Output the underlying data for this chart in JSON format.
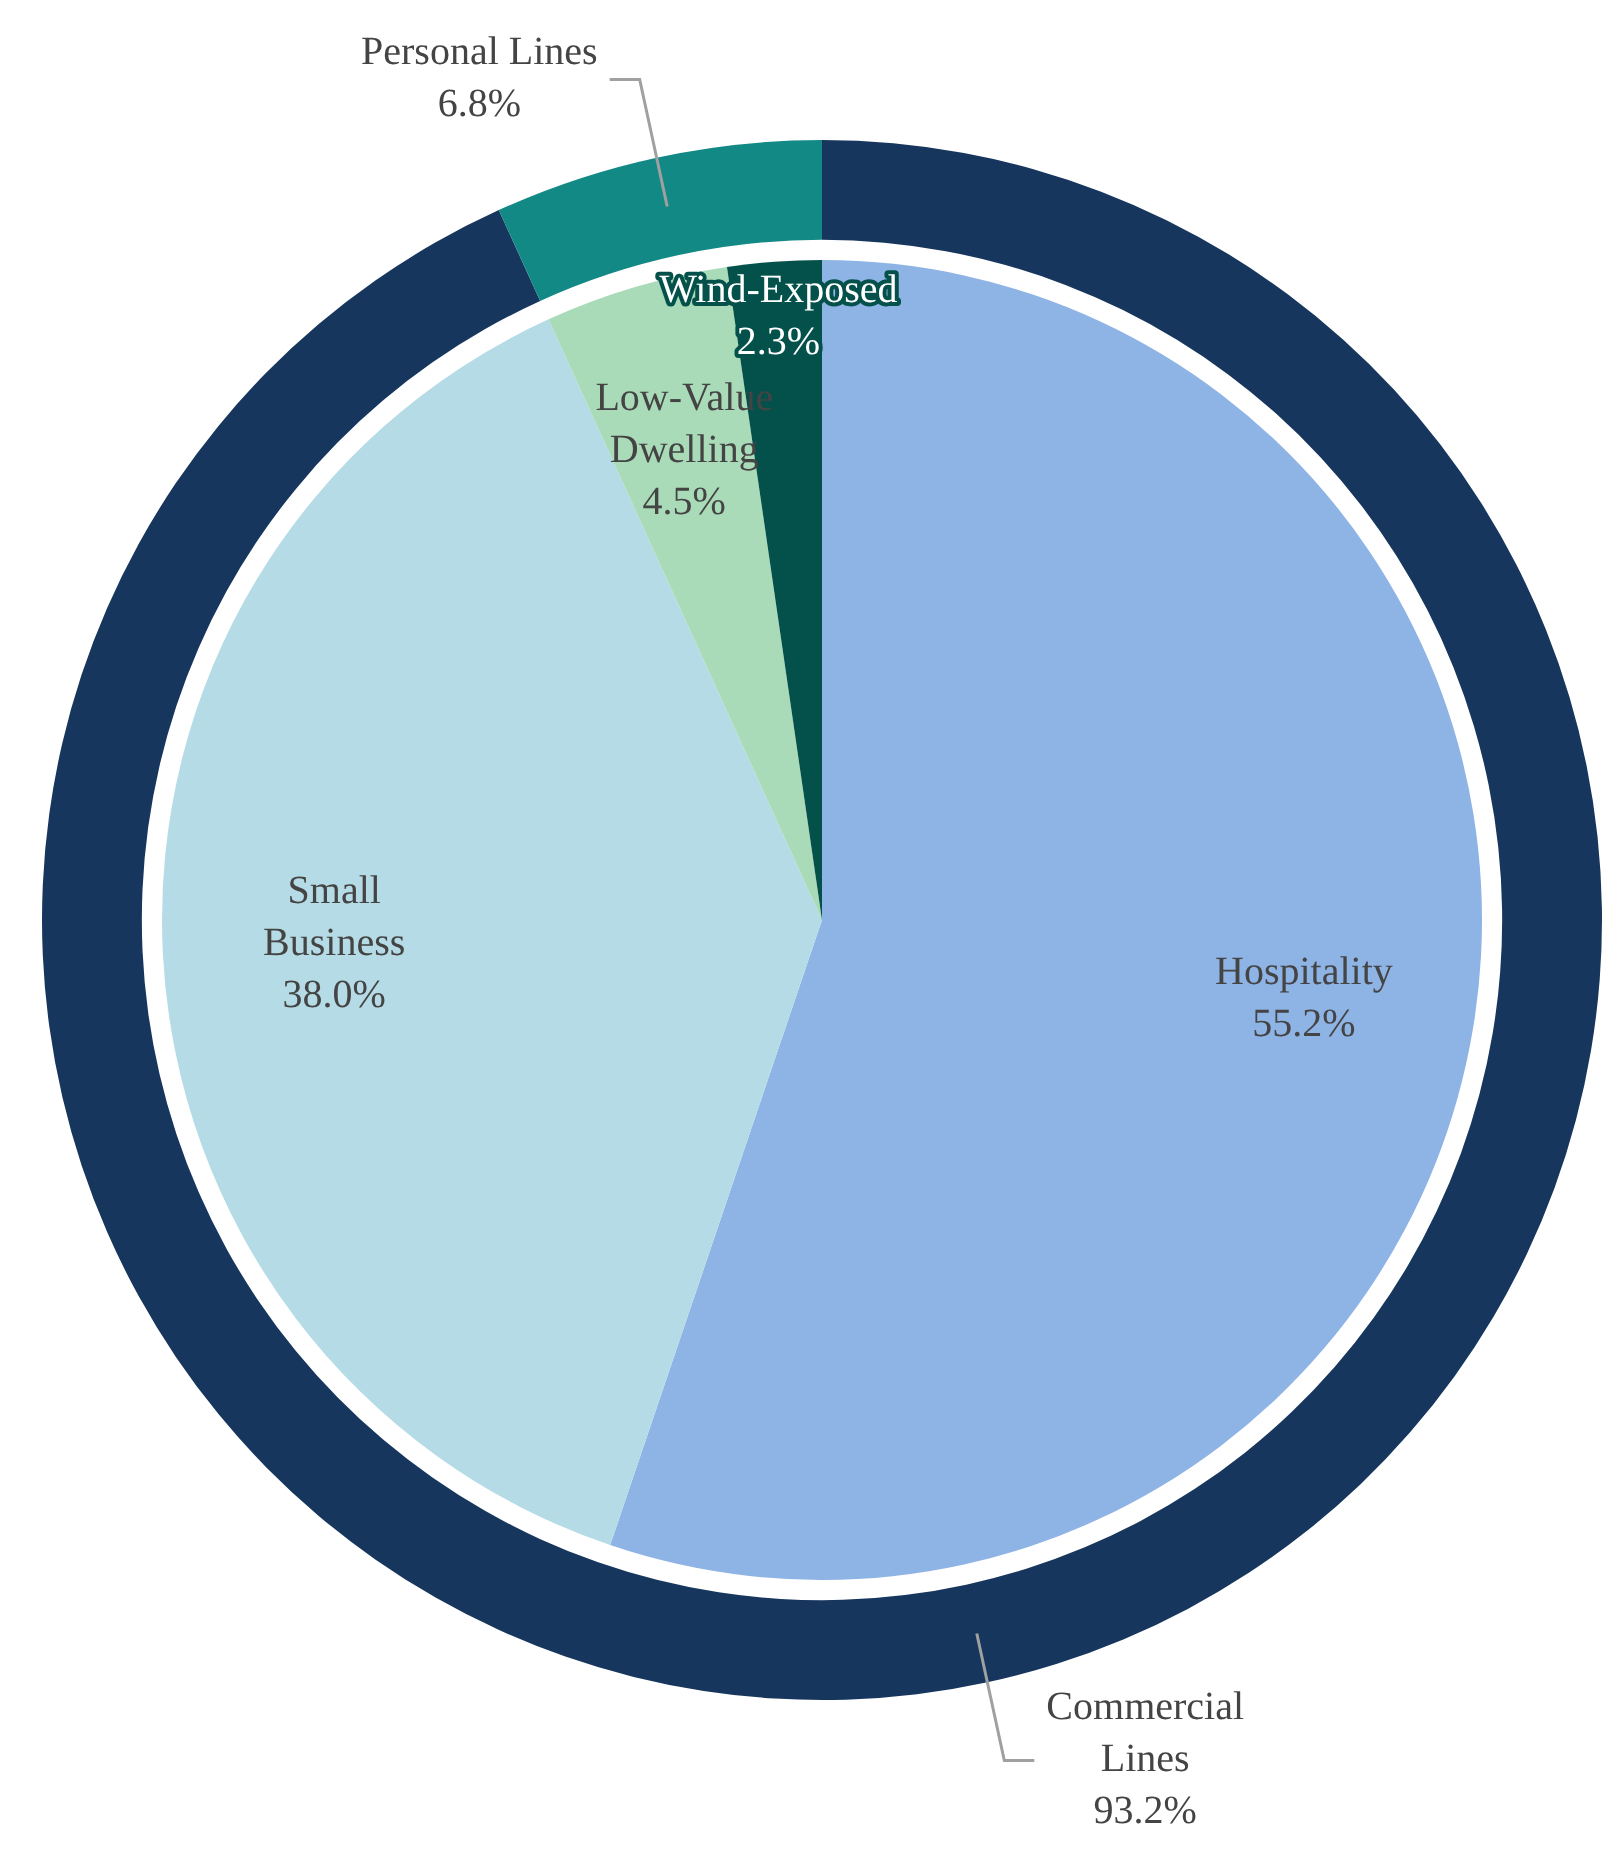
{
  "chart_data": [
    {
      "type": "donut",
      "categories": [
        "Commercial Lines",
        "Personal Lines"
      ],
      "values": [
        93.2,
        6.8
      ],
      "colors": [
        "#17365d",
        "#128985"
      ],
      "value_labels": [
        "93.2%",
        "6.8%"
      ]
    },
    {
      "type": "pie",
      "categories": [
        "Hospitality",
        "Small Business",
        "Low-Value Dwelling",
        "Wind-Exposed"
      ],
      "values": [
        55.2,
        38.0,
        4.5,
        2.3
      ],
      "colors": [
        "#8eb3e5",
        "#b5dce6",
        "#a9dbb9",
        "#03514a"
      ],
      "value_labels": [
        "55.2%",
        "38.0%",
        "4.5%",
        "2.3%"
      ]
    }
  ]
}
